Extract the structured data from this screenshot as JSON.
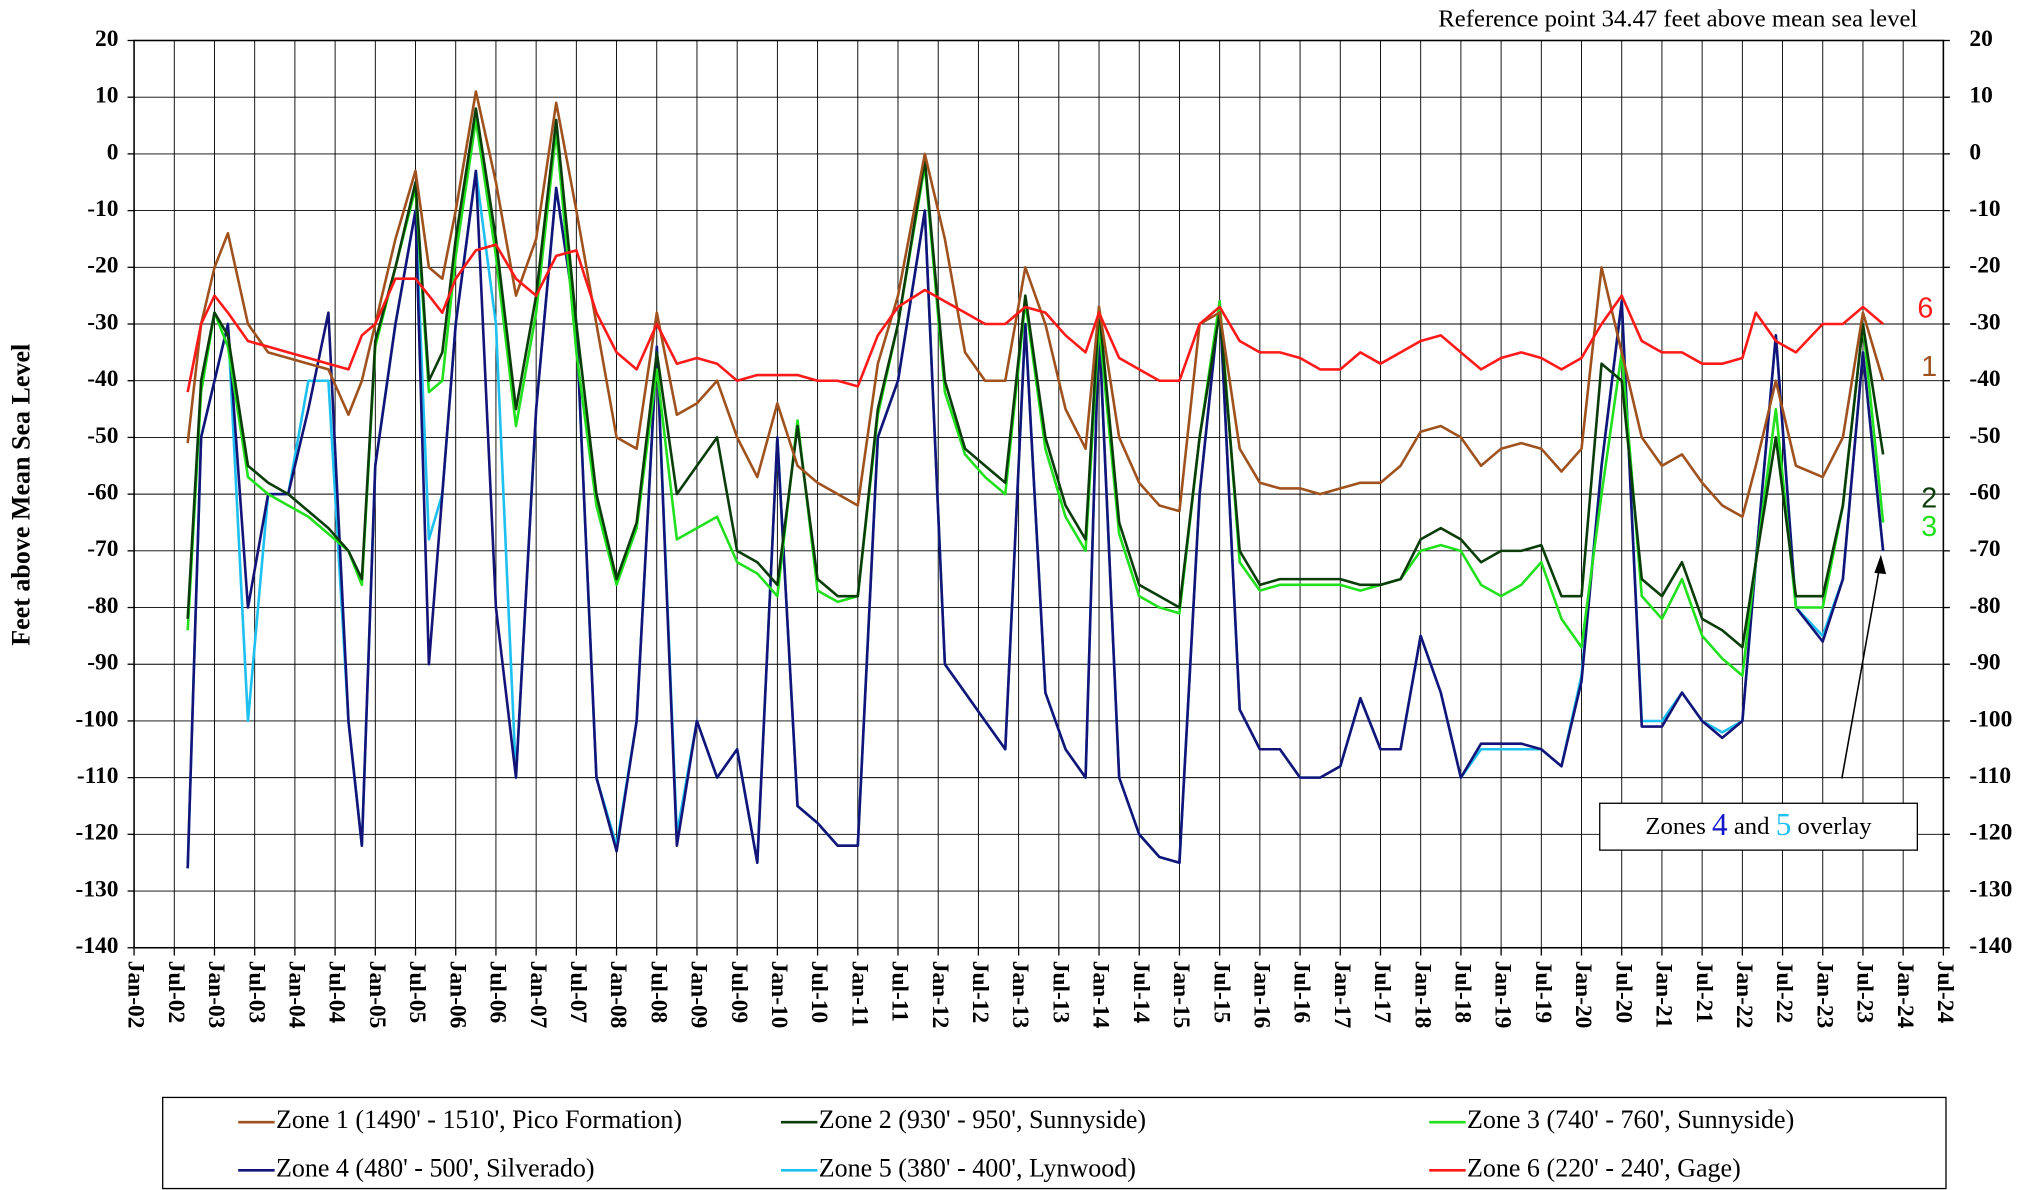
{
  "chart_data": {
    "type": "line",
    "annotation": "Reference point 34.47 feet above mean sea level",
    "y_label": "Feet above Mean Sea Level",
    "overlay_note": [
      "Zones",
      "4",
      "and",
      "5",
      "overlay"
    ],
    "x": [
      "2002-09",
      "2002-11",
      "2003-01",
      "2003-03",
      "2003-06",
      "2003-09",
      "2003-12",
      "2004-03",
      "2004-06",
      "2004-09",
      "2004-11",
      "2005-01",
      "2005-04",
      "2005-07",
      "2005-09",
      "2005-11",
      "2006-01",
      "2006-04",
      "2006-07",
      "2006-10",
      "2007-01",
      "2007-04",
      "2007-07",
      "2007-10",
      "2008-01",
      "2008-04",
      "2008-07",
      "2008-10",
      "2009-01",
      "2009-04",
      "2009-07",
      "2009-10",
      "2010-01",
      "2010-04",
      "2010-07",
      "2010-10",
      "2011-01",
      "2011-04",
      "2011-07",
      "2011-11",
      "2012-02",
      "2012-05",
      "2012-08",
      "2012-11",
      "2013-02",
      "2013-05",
      "2013-08",
      "2013-11",
      "2014-01",
      "2014-04",
      "2014-07",
      "2014-10",
      "2015-01",
      "2015-04",
      "2015-07",
      "2015-10",
      "2016-01",
      "2016-04",
      "2016-07",
      "2016-10",
      "2017-01",
      "2017-04",
      "2017-07",
      "2017-10",
      "2018-01",
      "2018-04",
      "2018-07",
      "2018-10",
      "2019-01",
      "2019-04",
      "2019-07",
      "2019-10",
      "2020-01",
      "2020-04",
      "2020-07",
      "2020-10",
      "2021-01",
      "2021-04",
      "2021-07",
      "2021-10",
      "2022-01",
      "2022-03",
      "2022-06",
      "2022-09",
      "2023-01",
      "2023-04",
      "2023-07",
      "2023-10"
    ],
    "series": [
      {
        "name": "Zone 1 (1490' - 1510', Pico Formation)",
        "label": "1",
        "color": "#a0521e",
        "values": [
          -51,
          -30,
          -20,
          -14,
          -30,
          -35,
          -36,
          -37,
          -38,
          -46,
          -40,
          -30,
          -15,
          -3,
          -20,
          -22,
          -10,
          11,
          -5,
          -25,
          -15,
          9,
          -10,
          -30,
          -50,
          -52,
          -28,
          -46,
          -44,
          -40,
          -50,
          -57,
          -44,
          -55,
          -58,
          -60,
          -62,
          -37,
          -25,
          0,
          -15,
          -35,
          -40,
          -40,
          -20,
          -30,
          -45,
          -52,
          -27,
          -50,
          -58,
          -62,
          -63,
          -30,
          -28,
          -52,
          -58,
          -59,
          -59,
          -60,
          -59,
          -58,
          -58,
          -55,
          -49,
          -48,
          -50,
          -55,
          -52,
          -51,
          -52,
          -56,
          -52,
          -20,
          -35,
          -50,
          -55,
          -53,
          -58,
          -62,
          -64,
          -55,
          -40,
          -55,
          -57,
          -50,
          -28,
          -40
        ]
      },
      {
        "name": "Zone 2 (930' - 950', Sunnyside)",
        "label": "2",
        "color": "#0b3d0b",
        "values": [
          -82,
          -40,
          -28,
          -32,
          -55,
          -58,
          -60,
          -63,
          -66,
          -70,
          -75,
          -33,
          -20,
          -5,
          -40,
          -35,
          -15,
          8,
          -15,
          -45,
          -25,
          6,
          -30,
          -60,
          -75,
          -65,
          -35,
          -60,
          -55,
          -50,
          -70,
          -72,
          -76,
          -48,
          -75,
          -78,
          -78,
          -45,
          -30,
          -1,
          -40,
          -52,
          -55,
          -58,
          -25,
          -50,
          -62,
          -68,
          -27,
          -65,
          -76,
          -78,
          -80,
          -50,
          -28,
          -70,
          -76,
          -75,
          -75,
          -75,
          -75,
          -76,
          -76,
          -75,
          -68,
          -66,
          -68,
          -72,
          -70,
          -70,
          -69,
          -78,
          -78,
          -37,
          -40,
          -75,
          -78,
          -72,
          -82,
          -84,
          -87,
          -72,
          -50,
          -78,
          -78,
          -62,
          -30,
          -53
        ]
      },
      {
        "name": "Zone 3 (740' - 760', Sunnyside)",
        "label": "3",
        "color": "#22e01e",
        "values": [
          -84,
          -42,
          -28,
          -34,
          -57,
          -60,
          -62,
          -64,
          -67,
          -70,
          -76,
          -34,
          -20,
          -6,
          -42,
          -40,
          -18,
          6,
          -18,
          -48,
          -28,
          4,
          -35,
          -62,
          -76,
          -66,
          -38,
          -68,
          -66,
          -64,
          -72,
          -74,
          -78,
          -47,
          -77,
          -79,
          -78,
          -46,
          -30,
          -2,
          -42,
          -53,
          -57,
          -60,
          -26,
          -52,
          -64,
          -70,
          -30,
          -67,
          -78,
          -80,
          -81,
          -50,
          -26,
          -72,
          -77,
          -76,
          -76,
          -76,
          -76,
          -77,
          -76,
          -75,
          -70,
          -69,
          -70,
          -76,
          -78,
          -76,
          -72,
          -82,
          -87,
          -60,
          -35,
          -78,
          -82,
          -75,
          -85,
          -89,
          -92,
          -72,
          -45,
          -80,
          -80,
          -62,
          -30,
          -65
        ]
      },
      {
        "name": "Zone 4 (480' - 500', Silverado)",
        "color": "#141478",
        "values": [
          -126,
          -50,
          -40,
          -30,
          -80,
          -60,
          -60,
          -45,
          -28,
          -100,
          -122,
          -55,
          -30,
          -10,
          -90,
          -60,
          -30,
          -3,
          -80,
          -110,
          -45,
          -6,
          -30,
          -110,
          -123,
          -100,
          -34,
          -122,
          -100,
          -110,
          -105,
          -125,
          -50,
          -115,
          -118,
          -122,
          -122,
          -50,
          -40,
          -10,
          -90,
          -95,
          -100,
          -105,
          -30,
          -95,
          -105,
          -110,
          -30,
          -110,
          -120,
          -124,
          -125,
          -60,
          -26,
          -98,
          -105,
          -105,
          -110,
          -110,
          -108,
          -96,
          -105,
          -105,
          -85,
          -95,
          -110,
          -104,
          -104,
          -104,
          -105,
          -108,
          -93,
          -55,
          -26,
          -101,
          -101,
          -95,
          -100,
          -103,
          -100,
          -72,
          -32,
          -80,
          -86,
          -75,
          -35,
          -70
        ]
      },
      {
        "name": "Zone 5 (380' - 400', Lynwood)",
        "color": "#1ec0f0",
        "values": [
          -126,
          -50,
          -40,
          -30,
          -100,
          -60,
          -60,
          -40,
          -40,
          -100,
          -122,
          -55,
          -30,
          -10,
          -68,
          -60,
          -30,
          -3,
          -30,
          -110,
          -45,
          -6,
          -30,
          -110,
          -122,
          -100,
          -34,
          -120,
          -100,
          -110,
          -105,
          -125,
          -50,
          -115,
          -118,
          -122,
          -122,
          -50,
          -40,
          -10,
          -90,
          -95,
          -100,
          -105,
          -30,
          -95,
          -105,
          -110,
          -30,
          -110,
          -120,
          -124,
          -125,
          -60,
          -26,
          -98,
          -105,
          -105,
          -110,
          -110,
          -108,
          -96,
          -105,
          -105,
          -85,
          -95,
          -110,
          -105,
          -105,
          -105,
          -105,
          -108,
          -92,
          -55,
          -26,
          -100,
          -100,
          -95,
          -100,
          -102,
          -100,
          -72,
          -32,
          -80,
          -85,
          -75,
          -35,
          -70
        ]
      },
      {
        "name": "Zone 6 (220' - 240', Gage)",
        "label": "6",
        "color": "#ff1a1a",
        "values": [
          -42,
          -30,
          -25,
          -28,
          -33,
          -34,
          -35,
          -36,
          -37,
          -38,
          -32,
          -30,
          -22,
          -22,
          -25,
          -28,
          -22,
          -17,
          -16,
          -22,
          -25,
          -18,
          -17,
          -28,
          -35,
          -38,
          -30,
          -37,
          -36,
          -37,
          -40,
          -39,
          -39,
          -39,
          -40,
          -40,
          -41,
          -32,
          -27,
          -24,
          -26,
          -28,
          -30,
          -30,
          -27,
          -28,
          -32,
          -35,
          -28,
          -36,
          -38,
          -40,
          -40,
          -30,
          -27,
          -33,
          -35,
          -35,
          -36,
          -38,
          -38,
          -35,
          -37,
          -35,
          -33,
          -32,
          -35,
          -38,
          -36,
          -35,
          -36,
          -38,
          -36,
          -30,
          -25,
          -33,
          -35,
          -35,
          -37,
          -37,
          -36,
          -28,
          -33,
          -35,
          -30,
          -30,
          -27,
          -30
        ]
      }
    ],
    "xlim": [
      "2002-01",
      "2024-07"
    ],
    "xticks": [
      {
        "value": "2002-01",
        "label": "Jan-02"
      },
      {
        "value": "2002-07",
        "label": "Jul-02"
      },
      {
        "value": "2003-01",
        "label": "Jan-03"
      },
      {
        "value": "2003-07",
        "label": "Jul-03"
      },
      {
        "value": "2004-01",
        "label": "Jan-04"
      },
      {
        "value": "2004-07",
        "label": "Jul-04"
      },
      {
        "value": "2005-01",
        "label": "Jan-05"
      },
      {
        "value": "2005-07",
        "label": "Jul-05"
      },
      {
        "value": "2006-01",
        "label": "Jan-06"
      },
      {
        "value": "2006-07",
        "label": "Jul-06"
      },
      {
        "value": "2007-01",
        "label": "Jan-07"
      },
      {
        "value": "2007-07",
        "label": "Jul-07"
      },
      {
        "value": "2008-01",
        "label": "Jan-08"
      },
      {
        "value": "2008-07",
        "label": "Jul-08"
      },
      {
        "value": "2009-01",
        "label": "Jan-09"
      },
      {
        "value": "2009-07",
        "label": "Jul-09"
      },
      {
        "value": "2010-01",
        "label": "Jan-10"
      },
      {
        "value": "2010-07",
        "label": "Jul-10"
      },
      {
        "value": "2011-01",
        "label": "Jan-11"
      },
      {
        "value": "2011-07",
        "label": "Jul-11"
      },
      {
        "value": "2012-01",
        "label": "Jan-12"
      },
      {
        "value": "2012-07",
        "label": "Jul-12"
      },
      {
        "value": "2013-01",
        "label": "Jan-13"
      },
      {
        "value": "2013-07",
        "label": "Jul-13"
      },
      {
        "value": "2014-01",
        "label": "Jan-14"
      },
      {
        "value": "2014-07",
        "label": "Jul-14"
      },
      {
        "value": "2015-01",
        "label": "Jan-15"
      },
      {
        "value": "2015-07",
        "label": "Jul-15"
      },
      {
        "value": "2016-01",
        "label": "Jan-16"
      },
      {
        "value": "2016-07",
        "label": "Jul-16"
      },
      {
        "value": "2017-01",
        "label": "Jan-17"
      },
      {
        "value": "2017-07",
        "label": "Jul-17"
      },
      {
        "value": "2018-01",
        "label": "Jan-18"
      },
      {
        "value": "2018-07",
        "label": "Jul-18"
      },
      {
        "value": "2019-01",
        "label": "Jan-19"
      },
      {
        "value": "2019-07",
        "label": "Jul-19"
      },
      {
        "value": "2020-01",
        "label": "Jan-20"
      },
      {
        "value": "2020-07",
        "label": "Jul-20"
      },
      {
        "value": "2021-01",
        "label": "Jan-21"
      },
      {
        "value": "2021-07",
        "label": "Jul-21"
      },
      {
        "value": "2022-01",
        "label": "Jan-22"
      },
      {
        "value": "2022-07",
        "label": "Jul-22"
      },
      {
        "value": "2023-01",
        "label": "Jan-23"
      },
      {
        "value": "2023-07",
        "label": "Jul-23"
      },
      {
        "value": "2024-01",
        "label": "Jan-24"
      },
      {
        "value": "2024-07",
        "label": "Jul-24"
      }
    ],
    "ylim": [
      -140,
      20
    ],
    "yticks": [
      -140,
      -130,
      -120,
      -110,
      -100,
      -90,
      -80,
      -70,
      -60,
      -50,
      -40,
      -30,
      -20,
      -10,
      0,
      10,
      20
    ],
    "y2lim": [
      -140,
      20
    ],
    "y2ticks": [
      -140,
      -130,
      -120,
      -110,
      -100,
      -90,
      -80,
      -70,
      -60,
      -50,
      -40,
      -30,
      -20,
      -10,
      0,
      10,
      20
    ],
    "grid": true
  }
}
